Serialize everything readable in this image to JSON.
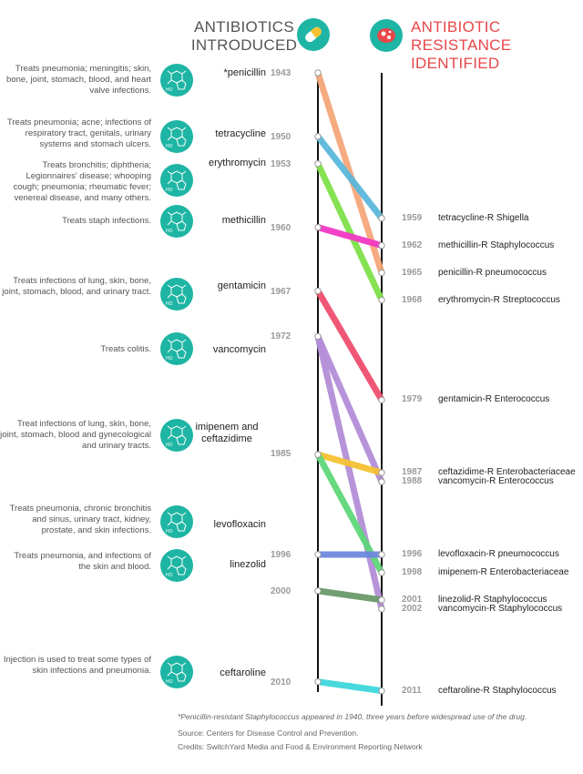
{
  "header": {
    "left_line1": "ANTIBIOTICS",
    "left_line2": "INTRODUCED",
    "right_line1": "ANTIBIOTIC RESISTANCE",
    "right_line2": "IDENTIFIED",
    "left_icon": "pill-icon",
    "right_icon": "bacteria-icon"
  },
  "colors": {
    "teal": "#1eb5a4",
    "resistance_red": "#e8474a",
    "penicillin": "#f5a77a",
    "tetracycline": "#5bb8dc",
    "erythromycin": "#7fe14a",
    "methicillin": "#f239c5",
    "gentamicin": "#f04d6e",
    "vancomycin": "#b48ed8",
    "ceftazidime": "#f6c233",
    "imipenem": "#5fd77a",
    "levofloxacin": "#6e88de",
    "linezolid": "#6a9a6a",
    "ceftaroline": "#3ed8dc"
  },
  "chart_data": {
    "type": "line",
    "left_axis_label": "ANTIBIOTICS INTRODUCED",
    "right_axis_label": "ANTIBIOTIC RESISTANCE IDENTIFIED",
    "antibiotics": [
      {
        "name": "*penicillin",
        "year": 1943,
        "description": "Treats pneumonia; meningitis; skin, bone, joint, stomach, blood, and heart valve infections."
      },
      {
        "name": "tetracycline",
        "year": 1950,
        "description": "Treats pneumonia; acne; infections of respiratory tract, genitals, urinary systems and stomach ulcers."
      },
      {
        "name": "erythromycin",
        "year": 1953,
        "description": "Treats bronchitis; diphtheria; Legionnaires' disease; whooping cough; pneumonia; rheumatic fever; venereal disease, and many others."
      },
      {
        "name": "methicillin",
        "year": 1960,
        "description": "Treats staph infections."
      },
      {
        "name": "gentamicin",
        "year": 1967,
        "description": "Treats infections of lung, skin, bone, joint, stomach, blood, and urinary tract."
      },
      {
        "name": "vancomycin",
        "year": 1972,
        "description": "Treats colitis."
      },
      {
        "name": "imipenem and ceftazidime",
        "year": 1985,
        "description": "Treat infections of lung, skin, bone, joint, stomach, blood and gynecological and urinary tracts."
      },
      {
        "name": "levofloxacin",
        "year": 1996,
        "description": "Treats pneumonia, chronic bronchitis and sinus, urinary tract, kidney, prostate, and skin infections."
      },
      {
        "name": "linezolid",
        "year": 2000,
        "description": "Treats pneumonia, and infections of the skin and blood."
      },
      {
        "name": "ceftaroline",
        "year": 2010,
        "description": "Injection is used to treat some types of skin infections and pneumonia."
      }
    ],
    "resistances": [
      {
        "name": "tetracycline-R Shigella",
        "year": 1959
      },
      {
        "name": "methicillin-R Staphylococcus",
        "year": 1962
      },
      {
        "name": "penicillin-R pneumococcus",
        "year": 1965
      },
      {
        "name": "erythromycin-R Streptococcus",
        "year": 1968
      },
      {
        "name": "gentamicin-R Enterococcus",
        "year": 1979
      },
      {
        "name": "ceftazidime-R Enterobacteriaceae",
        "year": 1987
      },
      {
        "name": "vancomycin-R Enterococcus",
        "year": 1988
      },
      {
        "name": "levofloxacin-R pneumococcus",
        "year": 1996
      },
      {
        "name": "imipenem-R Enterobacteriaceae",
        "year": 1998
      },
      {
        "name": "linezolid-R Staphylococcus",
        "year": 2001
      },
      {
        "name": "vancomycin-R Staphylococcus",
        "year": 2002
      },
      {
        "name": "ceftaroline-R Staphylococcus",
        "year": 2011
      }
    ],
    "links": [
      {
        "drug": "penicillin",
        "from": 1943,
        "to": 1965,
        "color": "#f5a77a"
      },
      {
        "drug": "tetracycline",
        "from": 1950,
        "to": 1959,
        "color": "#5bb8dc"
      },
      {
        "drug": "erythromycin",
        "from": 1953,
        "to": 1968,
        "color": "#7fe14a"
      },
      {
        "drug": "methicillin",
        "from": 1960,
        "to": 1962,
        "color": "#f239c5"
      },
      {
        "drug": "gentamicin",
        "from": 1967,
        "to": 1979,
        "color": "#f04d6e"
      },
      {
        "drug": "vancomycin",
        "from": 1972,
        "to": 1988,
        "color": "#b48ed8"
      },
      {
        "drug": "vancomycin",
        "from": 1972,
        "to": 2002,
        "color": "#b48ed8"
      },
      {
        "drug": "ceftazidime",
        "from": 1985,
        "to": 1987,
        "color": "#f6c233"
      },
      {
        "drug": "imipenem",
        "from": 1985,
        "to": 1998,
        "color": "#5fd77a"
      },
      {
        "drug": "levofloxacin",
        "from": 1996,
        "to": 1996,
        "color": "#6e88de"
      },
      {
        "drug": "linezolid",
        "from": 2000,
        "to": 2001,
        "color": "#6a9a6a"
      },
      {
        "drug": "ceftaroline",
        "from": 2010,
        "to": 2011,
        "color": "#3ed8dc"
      }
    ]
  },
  "footer": {
    "note": "*Penicillin-resistant Staphylococcus appeared in 1940, three years before widespread use of the drug.",
    "source": "Source: Centers for Disease Control and Prevention.",
    "credits": "Credits: SwitchYard Media and Food & Environment Reporting Network"
  }
}
